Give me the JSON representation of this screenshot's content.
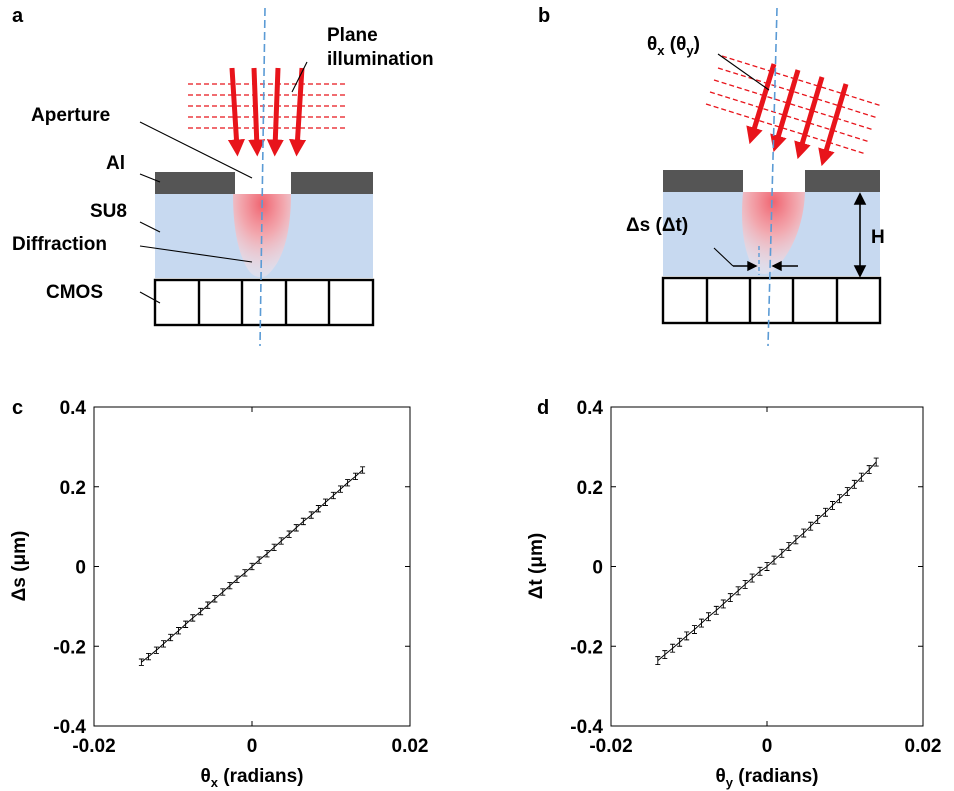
{
  "panel_a": {
    "letter": "a",
    "labels": {
      "plane_line1": "Plane",
      "plane_line2": "illumination",
      "aperture": "Aperture",
      "al": "Al",
      "su8": "SU8",
      "diffraction": "Diffraction",
      "cmos": "CMOS"
    }
  },
  "panel_b": {
    "letter": "b",
    "labels": {
      "theta_main": "θ",
      "theta_x_sub": "x",
      "theta_paren_open": " (θ",
      "theta_y_sub": "y",
      "theta_paren_close": ")",
      "shift": "Δs (Δt)",
      "height": "H"
    }
  },
  "colors": {
    "metal": "#555555",
    "su8": "#c7d9f0",
    "illumination": "#e8141b",
    "optical_axis": "#5b9bd5",
    "diffraction_core": "#f06470",
    "frame": "#000000"
  },
  "chart_data": [
    {
      "panel": "c",
      "type": "line",
      "xlabel_main": "θ",
      "xlabel_sub": "x",
      "xlabel_rest": " (radians)",
      "ylabel": "Δs (μm)",
      "xlim": [
        -0.02,
        0.02
      ],
      "ylim": [
        -0.4,
        0.4
      ],
      "xticks": [
        "-0.02",
        "0",
        "0.02"
      ],
      "xtick_values": [
        -0.02,
        0,
        0.02
      ],
      "yticks": [
        "0.4",
        "0.2",
        "0",
        "-0.2",
        "-0.4"
      ],
      "ytick_values": [
        0.4,
        0.2,
        0,
        -0.2,
        -0.4
      ],
      "error_bar": 0.008,
      "x": [
        -0.014,
        -0.0131,
        -0.0121,
        -0.0112,
        -0.0103,
        -0.0093,
        -0.0084,
        -0.0075,
        -0.0065,
        -0.0056,
        -0.0047,
        -0.0037,
        -0.0028,
        -0.0019,
        -0.0009,
        0.0,
        0.0009,
        0.0019,
        0.0028,
        0.0037,
        0.0047,
        0.0056,
        0.0065,
        0.0075,
        0.0084,
        0.0093,
        0.0103,
        0.0112,
        0.0121,
        0.0131,
        0.014
      ],
      "y": [
        -0.24,
        -0.226,
        -0.21,
        -0.194,
        -0.178,
        -0.161,
        -0.145,
        -0.129,
        -0.113,
        -0.097,
        -0.081,
        -0.064,
        -0.048,
        -0.032,
        -0.016,
        0.0,
        0.016,
        0.032,
        0.048,
        0.064,
        0.081,
        0.097,
        0.113,
        0.129,
        0.145,
        0.161,
        0.178,
        0.194,
        0.21,
        0.226,
        0.242
      ]
    },
    {
      "panel": "d",
      "type": "line",
      "xlabel_main": "θ",
      "xlabel_sub": "y",
      "xlabel_rest": " (radians)",
      "ylabel": "Δt (μm)",
      "xlim": [
        -0.02,
        0.02
      ],
      "ylim": [
        -0.4,
        0.4
      ],
      "xticks": [
        "-0.02",
        "0",
        "0.02"
      ],
      "xtick_values": [
        -0.02,
        0,
        0.02
      ],
      "yticks": [
        "0.4",
        "0.2",
        "0",
        "-0.2",
        "-0.4"
      ],
      "ytick_values": [
        0.4,
        0.2,
        0,
        -0.2,
        -0.4
      ],
      "error_bar": 0.01,
      "x": [
        -0.014,
        -0.0131,
        -0.0121,
        -0.0112,
        -0.0103,
        -0.0093,
        -0.0084,
        -0.0075,
        -0.0065,
        -0.0056,
        -0.0047,
        -0.0037,
        -0.0028,
        -0.0019,
        -0.0009,
        0.0,
        0.0009,
        0.0019,
        0.0028,
        0.0037,
        0.0047,
        0.0056,
        0.0065,
        0.0075,
        0.0084,
        0.0093,
        0.0103,
        0.0112,
        0.0121,
        0.0131,
        0.014
      ],
      "y": [
        -0.236,
        -0.221,
        -0.205,
        -0.19,
        -0.174,
        -0.158,
        -0.142,
        -0.126,
        -0.11,
        -0.094,
        -0.078,
        -0.061,
        -0.045,
        -0.029,
        -0.012,
        0.0,
        0.016,
        0.033,
        0.05,
        0.067,
        0.084,
        0.101,
        0.118,
        0.136,
        0.153,
        0.17,
        0.188,
        0.206,
        0.224,
        0.243,
        0.262
      ]
    }
  ]
}
